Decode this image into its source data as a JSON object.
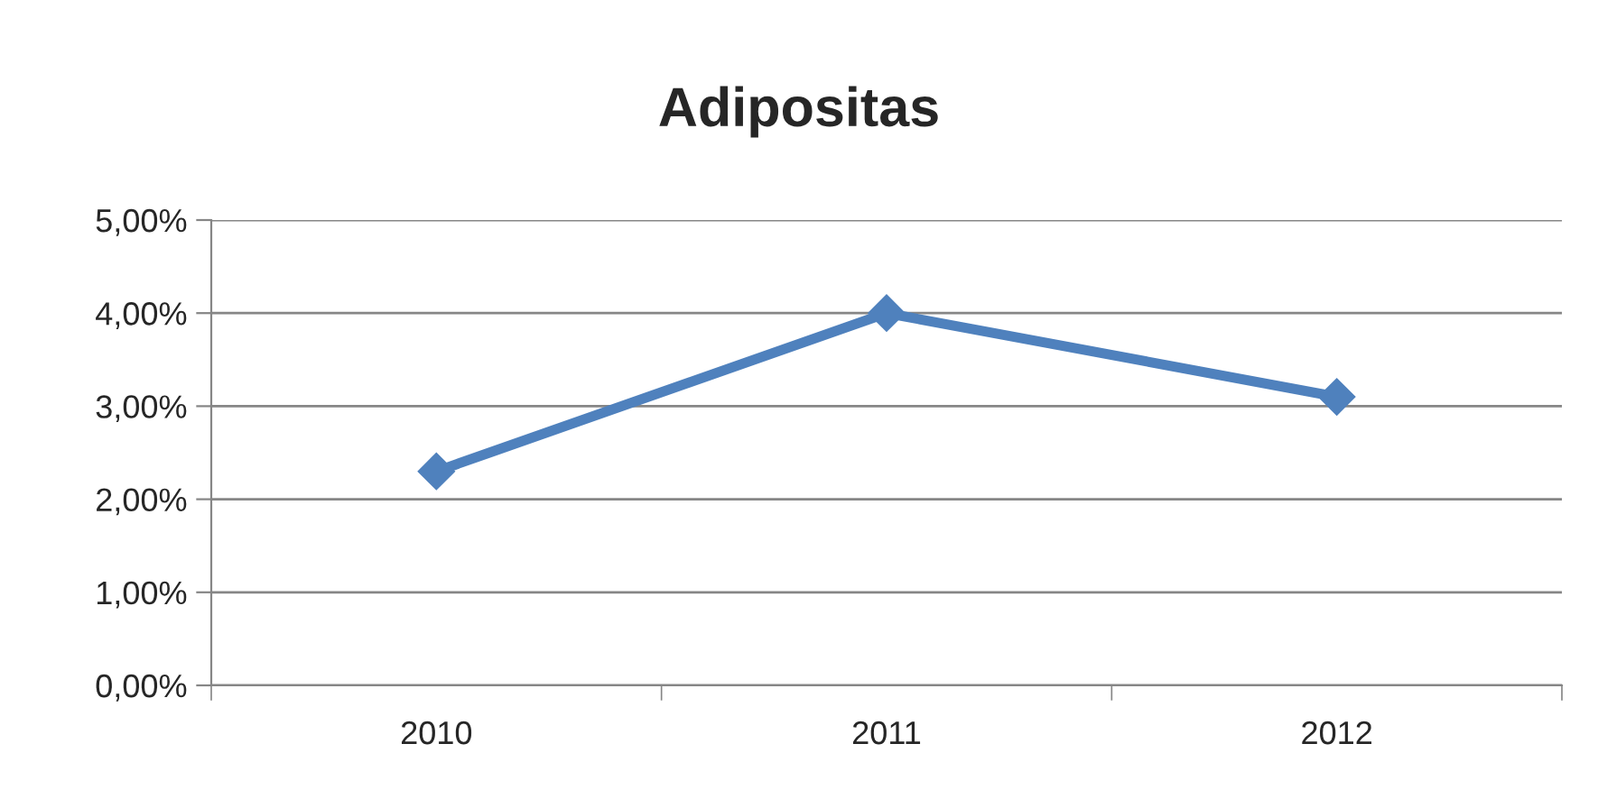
{
  "chart_data": {
    "type": "line",
    "title": "Adipositas",
    "categories": [
      "2010",
      "2011",
      "2012"
    ],
    "series": [
      {
        "color": "#4f81bd",
        "values": [
          2.3,
          4.0,
          3.1
        ]
      }
    ],
    "ylim": [
      0,
      5
    ],
    "yticks": [
      {
        "value": 0,
        "label": "0,00%"
      },
      {
        "value": 1,
        "label": "1,00%"
      },
      {
        "value": 2,
        "label": "2,00%"
      },
      {
        "value": 3,
        "label": "3,00%"
      },
      {
        "value": 4,
        "label": "4,00%"
      },
      {
        "value": 5,
        "label": "5,00%"
      }
    ],
    "grid": "y",
    "marker": "diamond",
    "line_style": "solid",
    "legend": false
  }
}
